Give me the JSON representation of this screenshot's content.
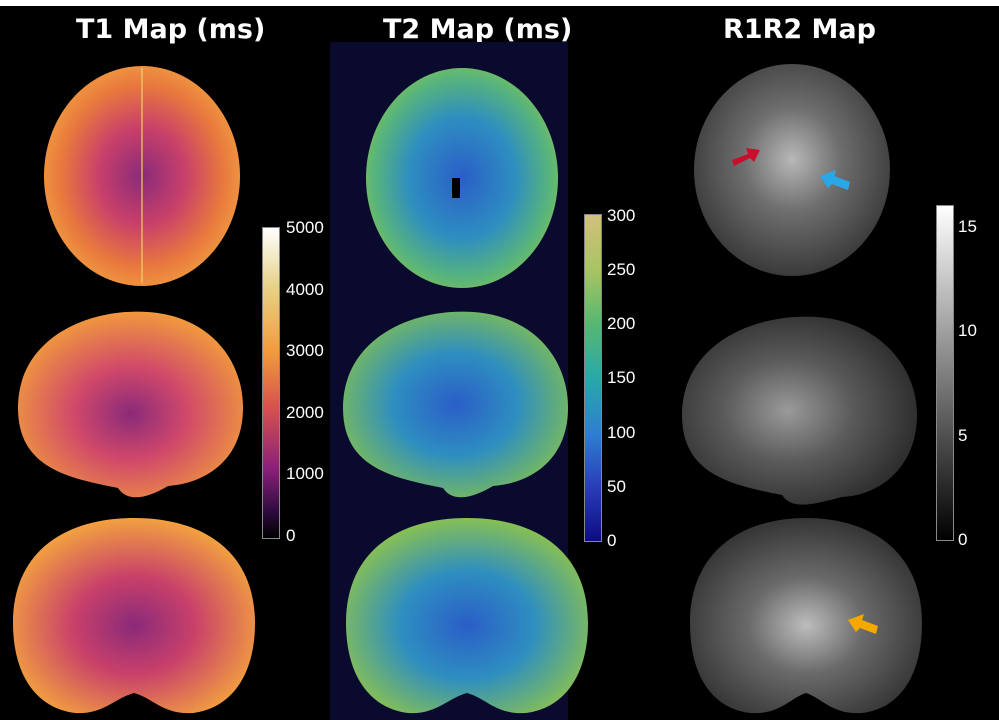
{
  "panels": [
    {
      "title": "T1 Map (ms)",
      "colormap": "plasma-like",
      "colorbar_ticks": [
        "5000",
        "4000",
        "3000",
        "2000",
        "1000",
        "0"
      ],
      "colorbar_gradient": [
        "#ffffff",
        "#e8d48c",
        "#f29b3a",
        "#d8504e",
        "#8a1f7a",
        "#2a0a3a",
        "#000000"
      ]
    },
    {
      "title": "T2 Map (ms)",
      "colormap": "parula-like",
      "colorbar_ticks": [
        "300",
        "250",
        "200",
        "150",
        "100",
        "50",
        "0"
      ],
      "colorbar_gradient": [
        "#d2c07c",
        "#a8c462",
        "#58b870",
        "#2aa8a8",
        "#2d7fd0",
        "#2a3fb8",
        "#0c0c80"
      ]
    },
    {
      "title": "R1R2 Map",
      "colormap": "gray",
      "colorbar_ticks": [
        "15",
        "10",
        "5",
        "0"
      ],
      "colorbar_gradient": [
        "#ffffff",
        "#000000"
      ]
    }
  ],
  "views": [
    "axial",
    "sagittal",
    "coronal"
  ],
  "arrows": [
    {
      "color": "#c8102e",
      "direction": "pointing-right"
    },
    {
      "color": "#2aa7e8",
      "direction": "pointing-left"
    },
    {
      "color": "#f5a800",
      "direction": "pointing-left"
    }
  ]
}
